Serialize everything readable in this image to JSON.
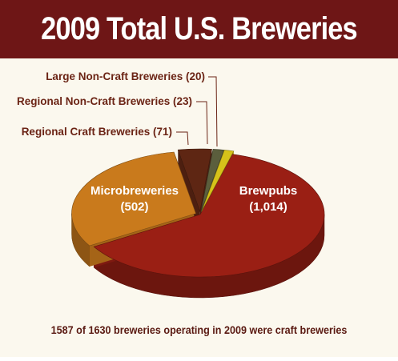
{
  "title": "2009 Total U.S. Breweries",
  "footnote": "1587 of 1630 breweries operating in 2009 were craft breweries",
  "chart_data": {
    "type": "pie",
    "title": "2009 Total U.S. Breweries",
    "slices": [
      {
        "label": "Brewpubs",
        "value_text": "(1,014)",
        "value": 1014,
        "color": "#9a1f14"
      },
      {
        "label": "Microbreweries",
        "value_text": "(502)",
        "value": 502,
        "color": "#c97a1c"
      },
      {
        "label": "Regional Craft Breweries (71)",
        "value": 71,
        "color": "#5e2613"
      },
      {
        "label": "Regional Non-Craft Breweries (23)",
        "value": 23,
        "color": "#5b5e3d"
      },
      {
        "label": "Large Non-Craft Breweries (20)",
        "value": 20,
        "color": "#d6c21a"
      }
    ]
  }
}
